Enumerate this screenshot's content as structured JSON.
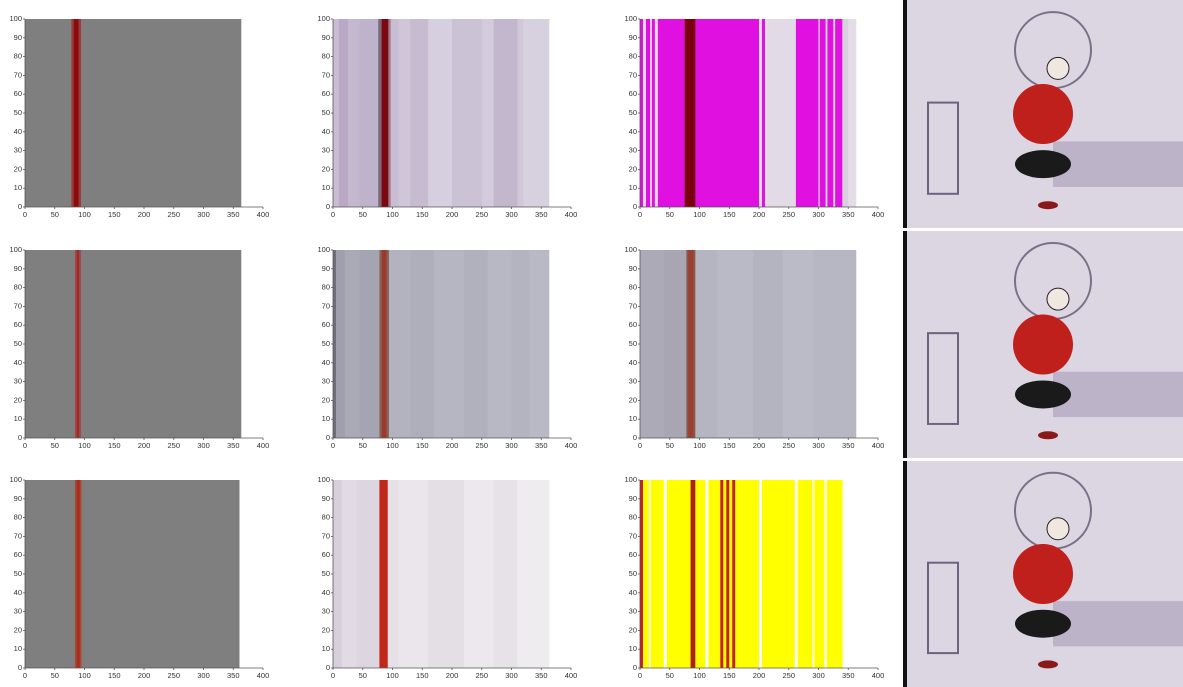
{
  "chart_data": [
    {
      "type": "stripe",
      "xlim": [
        0,
        400
      ],
      "ylim": [
        0,
        100
      ],
      "xticks": [
        0,
        50,
        100,
        150,
        200,
        250,
        300,
        350,
        400
      ],
      "yticks": [
        0,
        10,
        20,
        30,
        40,
        50,
        60,
        70,
        80,
        90,
        100
      ],
      "bins": [
        0,
        78,
        82,
        90,
        94,
        363
      ],
      "colors": [
        "#7f7f7f",
        "#9a3a3a",
        "#8b0a0a",
        "#9a3a3a",
        "#7f7f7f"
      ]
    },
    {
      "type": "stripe",
      "xlim": [
        0,
        400
      ],
      "ylim": [
        0,
        100
      ],
      "xticks": [
        0,
        50,
        100,
        150,
        200,
        250,
        300,
        350,
        400
      ],
      "yticks": [
        0,
        10,
        20,
        30,
        40,
        50,
        60,
        70,
        80,
        90,
        100
      ],
      "bins": [
        0,
        10,
        25,
        45,
        76,
        80,
        82,
        93,
        97,
        110,
        130,
        160,
        200,
        250,
        270,
        310,
        320,
        363
      ],
      "colors": [
        "#c9bcd3",
        "#b9a8c6",
        "#c4b8ce",
        "#bfb2cb",
        "#6f6f80",
        "#9b4a5a",
        "#7a0a12",
        "#a77a8a",
        "#c8bdd2",
        "#cfc6d9",
        "#c6bbd0",
        "#d6cfe0",
        "#cbc2d6",
        "#d3cbdd",
        "#c2b7cd",
        "#d0c8da",
        "#d6d0df"
      ]
    },
    {
      "type": "stripe",
      "xlim": [
        0,
        400
      ],
      "ylim": [
        0,
        100
      ],
      "xticks": [
        0,
        50,
        100,
        150,
        200,
        250,
        300,
        350,
        400
      ],
      "yticks": [
        0,
        10,
        20,
        30,
        40,
        50,
        60,
        70,
        80,
        90,
        100
      ],
      "bins": [
        0,
        5,
        10,
        17,
        20,
        25,
        30,
        75,
        93,
        100,
        200,
        205,
        210,
        215,
        262,
        300,
        302,
        312,
        315,
        325,
        328,
        340,
        350,
        363
      ],
      "colors": [
        "#e010e0",
        "#e6dce8",
        "#e010e0",
        "#e6dce8",
        "#e010e0",
        "#e6dce8",
        "#e010e0",
        "#7a0010",
        "#e010e0",
        "#e010e0",
        "#e6dce8",
        "#e010e0",
        "#e6dce8",
        "#e2dae6",
        "#e010e0",
        "#e6dce8",
        "#e010e0",
        "#e6dce8",
        "#e010e0",
        "#e6dce8",
        "#e010e0",
        "#d8d0dc",
        "#e6dce8"
      ]
    },
    {
      "type": "stripe",
      "xlim": [
        0,
        400
      ],
      "ylim": [
        0,
        100
      ],
      "xticks": [
        0,
        50,
        100,
        150,
        200,
        250,
        300,
        350,
        400
      ],
      "yticks": [
        0,
        10,
        20,
        30,
        40,
        50,
        60,
        70,
        80,
        90,
        100
      ],
      "bins": [
        0,
        84,
        87,
        91,
        94,
        363
      ],
      "colors": [
        "#7f7f7f",
        "#9a4a4a",
        "#a22a20",
        "#9a4a4a",
        "#7f7f7f"
      ]
    },
    {
      "type": "stripe",
      "xlim": [
        0,
        400
      ],
      "ylim": [
        0,
        100
      ],
      "xticks": [
        0,
        50,
        100,
        150,
        200,
        250,
        300,
        350,
        400
      ],
      "yticks": [
        0,
        10,
        20,
        30,
        40,
        50,
        60,
        70,
        80,
        90,
        100
      ],
      "bins": [
        0,
        5,
        20,
        45,
        78,
        82,
        90,
        94,
        130,
        170,
        220,
        260,
        300,
        330,
        363
      ],
      "colors": [
        "#6e6e7e",
        "#a09fae",
        "#aaa9b6",
        "#a5a4b2",
        "#8a6058",
        "#9b3a2a",
        "#8a6058",
        "#b2b3bf",
        "#aeafbb",
        "#b5b6c2",
        "#b0b1bd",
        "#b7b8c4",
        "#b3b4c0",
        "#b8b9c5"
      ]
    },
    {
      "type": "stripe",
      "xlim": [
        0,
        400
      ],
      "ylim": [
        0,
        100
      ],
      "xticks": [
        0,
        50,
        100,
        150,
        200,
        250,
        300,
        350,
        400
      ],
      "yticks": [
        0,
        10,
        20,
        30,
        40,
        50,
        60,
        70,
        80,
        90,
        100
      ],
      "bins": [
        0,
        40,
        78,
        81,
        90,
        93,
        130,
        190,
        240,
        290,
        363
      ],
      "colors": [
        "#acaab6",
        "#a8a6b3",
        "#8a5848",
        "#9a4030",
        "#8a5848",
        "#b4b5c0",
        "#b9bac5",
        "#b3b4bf",
        "#babbc6",
        "#b6b7c2"
      ]
    },
    {
      "type": "stripe",
      "xlim": [
        0,
        400
      ],
      "ylim": [
        0,
        100
      ],
      "xticks": [
        0,
        50,
        100,
        150,
        200,
        250,
        300,
        350,
        400
      ],
      "yticks": [
        0,
        10,
        20,
        30,
        40,
        50,
        60,
        70,
        80,
        90,
        100
      ],
      "bins": [
        0,
        84,
        87,
        92,
        95,
        360
      ],
      "colors": [
        "#7f7f7f",
        "#a04a3a",
        "#b02a1a",
        "#a04a3a",
        "#7f7f7f"
      ]
    },
    {
      "type": "stripe",
      "xlim": [
        0,
        400
      ],
      "ylim": [
        0,
        100
      ],
      "xticks": [
        0,
        50,
        100,
        150,
        200,
        250,
        300,
        350,
        400
      ],
      "yticks": [
        0,
        10,
        20,
        30,
        40,
        50,
        60,
        70,
        80,
        90,
        100
      ],
      "bins": [
        0,
        15,
        40,
        78,
        92,
        110,
        160,
        220,
        270,
        310,
        363
      ],
      "colors": [
        "#d8cfdc",
        "#e2dbe3",
        "#ddd5df",
        "#c0281a",
        "#e6e0e7",
        "#ebe6ec",
        "#e4dee5",
        "#ece8ed",
        "#e7e2e8",
        "#efecf0"
      ]
    },
    {
      "type": "stripe",
      "xlim": [
        0,
        400
      ],
      "ylim": [
        0,
        100
      ],
      "xticks": [
        0,
        50,
        100,
        150,
        200,
        250,
        300,
        350,
        400
      ],
      "yticks": [
        0,
        10,
        20,
        30,
        40,
        50,
        60,
        70,
        80,
        90,
        100
      ],
      "bins": [
        0,
        5,
        15,
        18,
        40,
        45,
        85,
        93,
        110,
        115,
        135,
        140,
        145,
        150,
        155,
        160,
        200,
        205,
        260,
        265,
        290,
        293,
        310,
        314,
        340
      ],
      "colors": [
        "#c8201a",
        "#ffff00",
        "#ffffff",
        "#ffff00",
        "#ffffff",
        "#ffff00",
        "#b02010",
        "#ffff00",
        "#ffffff",
        "#ffff00",
        "#c8201a",
        "#ffff00",
        "#c8201a",
        "#ffff00",
        "#c8201a",
        "#ffff00",
        "#ffffff",
        "#ffff00",
        "#ffffff",
        "#ffff00",
        "#ffffff",
        "#ffff00",
        "#ffffff",
        "#ffff00"
      ]
    }
  ]
}
